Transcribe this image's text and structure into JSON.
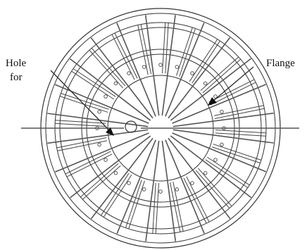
{
  "labels": {
    "hole_line1": "Hole",
    "hole_line2": "for",
    "flange": "Flange"
  },
  "colors": {
    "line": "#333333",
    "background": "#ffffff"
  },
  "diagram": {
    "radial_line_count": 12,
    "center_hole_pin_count_inner": 8,
    "outer_pin_count": 24
  }
}
